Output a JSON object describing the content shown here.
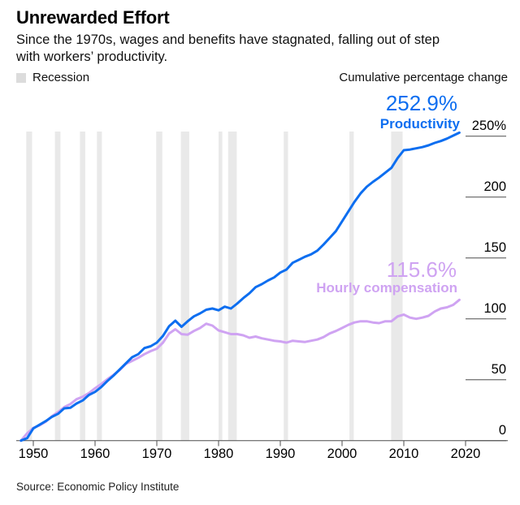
{
  "header": {
    "title": "Unrewarded Effort",
    "subtitle_line1": "Since the 1970s, wages and benefits have stagnated, falling out of step",
    "subtitle_line2": "with workers’ productivity."
  },
  "legend": {
    "recession_label": "Recession",
    "swatch_color": "#dcdcdc",
    "axis_title": "Cumulative percentage change"
  },
  "annotations": {
    "productivity": {
      "value": "252.9%",
      "label": "Productivity",
      "color": "#0d6ef0"
    },
    "compensation": {
      "value": "115.6%",
      "label": "Hourly compensation",
      "color": "#cfa3f2"
    }
  },
  "source": "Source: Economic Policy Institute",
  "chart_data": {
    "type": "line",
    "title": "Unrewarded Effort",
    "ylabel": "Cumulative percentage change",
    "xlabel": "",
    "grid": false,
    "legend_position": "inline-right",
    "axis_color": "#4d4d4d",
    "recession_color": "#e9e9e9",
    "ylim": [
      0,
      260
    ],
    "xlim": [
      1947.2,
      2026.8
    ],
    "x_ticks": [
      1950,
      1960,
      1970,
      1980,
      1990,
      2000,
      2010,
      2020
    ],
    "y_ticks": [
      {
        "value": 0,
        "label": "0"
      },
      {
        "value": 50,
        "label": "50"
      },
      {
        "value": 100,
        "label": "100"
      },
      {
        "value": 150,
        "label": "150"
      },
      {
        "value": 200,
        "label": "200"
      },
      {
        "value": 250,
        "label": "250%"
      }
    ],
    "x": [
      1948,
      1949,
      1950,
      1951,
      1952,
      1953,
      1954,
      1955,
      1956,
      1957,
      1958,
      1959,
      1960,
      1961,
      1962,
      1963,
      1964,
      1965,
      1966,
      1967,
      1968,
      1969,
      1970,
      1971,
      1972,
      1973,
      1974,
      1975,
      1976,
      1977,
      1978,
      1979,
      1980,
      1981,
      1982,
      1983,
      1984,
      1985,
      1986,
      1987,
      1988,
      1989,
      1990,
      1991,
      1992,
      1993,
      1994,
      1995,
      1996,
      1997,
      1998,
      1999,
      2000,
      2001,
      2002,
      2003,
      2004,
      2005,
      2006,
      2007,
      2008,
      2009,
      2010,
      2011,
      2012,
      2013,
      2014,
      2015,
      2016,
      2017,
      2018,
      2019
    ],
    "series": [
      {
        "id": "compensation",
        "name": "Hourly compensation",
        "color": "#cfa3f2",
        "end_value_label": "115.6%",
        "values": [
          0,
          6,
          10.5,
          12.5,
          15.5,
          20,
          23.5,
          27.5,
          30,
          34,
          36,
          39,
          43,
          46.5,
          50.5,
          54,
          58,
          63,
          65.5,
          68,
          71,
          73.5,
          75.5,
          80.5,
          88,
          91.5,
          87.5,
          87,
          90,
          92.5,
          96,
          94.5,
          90.5,
          89,
          87.5,
          87.5,
          86.5,
          84.5,
          85.5,
          84,
          83,
          82,
          81.5,
          80.5,
          82,
          81.5,
          81,
          82,
          83,
          85,
          88,
          90,
          92.5,
          95,
          97,
          98,
          98,
          97,
          96.5,
          98,
          98,
          102,
          103.5,
          101,
          100,
          101,
          102.5,
          106,
          108.5,
          109.5,
          111.5,
          115.6
        ]
      },
      {
        "id": "productivity",
        "name": "Productivity",
        "color": "#0d6ef0",
        "end_value_label": "252.9%",
        "values": [
          0,
          2,
          10,
          13,
          16,
          19.5,
          22,
          26.5,
          27,
          30.5,
          33,
          37.5,
          40,
          44,
          49,
          53.5,
          58.5,
          63.5,
          68.5,
          71,
          76,
          77.5,
          80.5,
          86,
          94,
          98.5,
          93.5,
          98,
          102,
          104.5,
          107.5,
          108.5,
          107,
          110,
          108.5,
          112.5,
          117,
          121,
          126,
          128.5,
          131.5,
          134,
          138,
          140.5,
          146,
          148.5,
          151,
          153,
          156,
          161,
          166.5,
          172,
          180,
          188,
          196,
          203,
          208.5,
          212.5,
          216,
          220,
          224,
          232,
          238.5,
          239,
          240,
          241,
          242.5,
          244.5,
          246,
          248,
          250.5,
          252.9
        ]
      }
    ],
    "recessions": [
      [
        1948.85,
        1949.8
      ],
      [
        1953.5,
        1954.4
      ],
      [
        1957.55,
        1958.4
      ],
      [
        1960.3,
        1961.1
      ],
      [
        1969.9,
        1970.9
      ],
      [
        1973.9,
        1975.25
      ],
      [
        1980.0,
        1980.6
      ],
      [
        1981.55,
        1982.95
      ],
      [
        1990.55,
        1991.25
      ],
      [
        2001.2,
        2001.9
      ],
      [
        2007.95,
        2009.8
      ]
    ]
  }
}
